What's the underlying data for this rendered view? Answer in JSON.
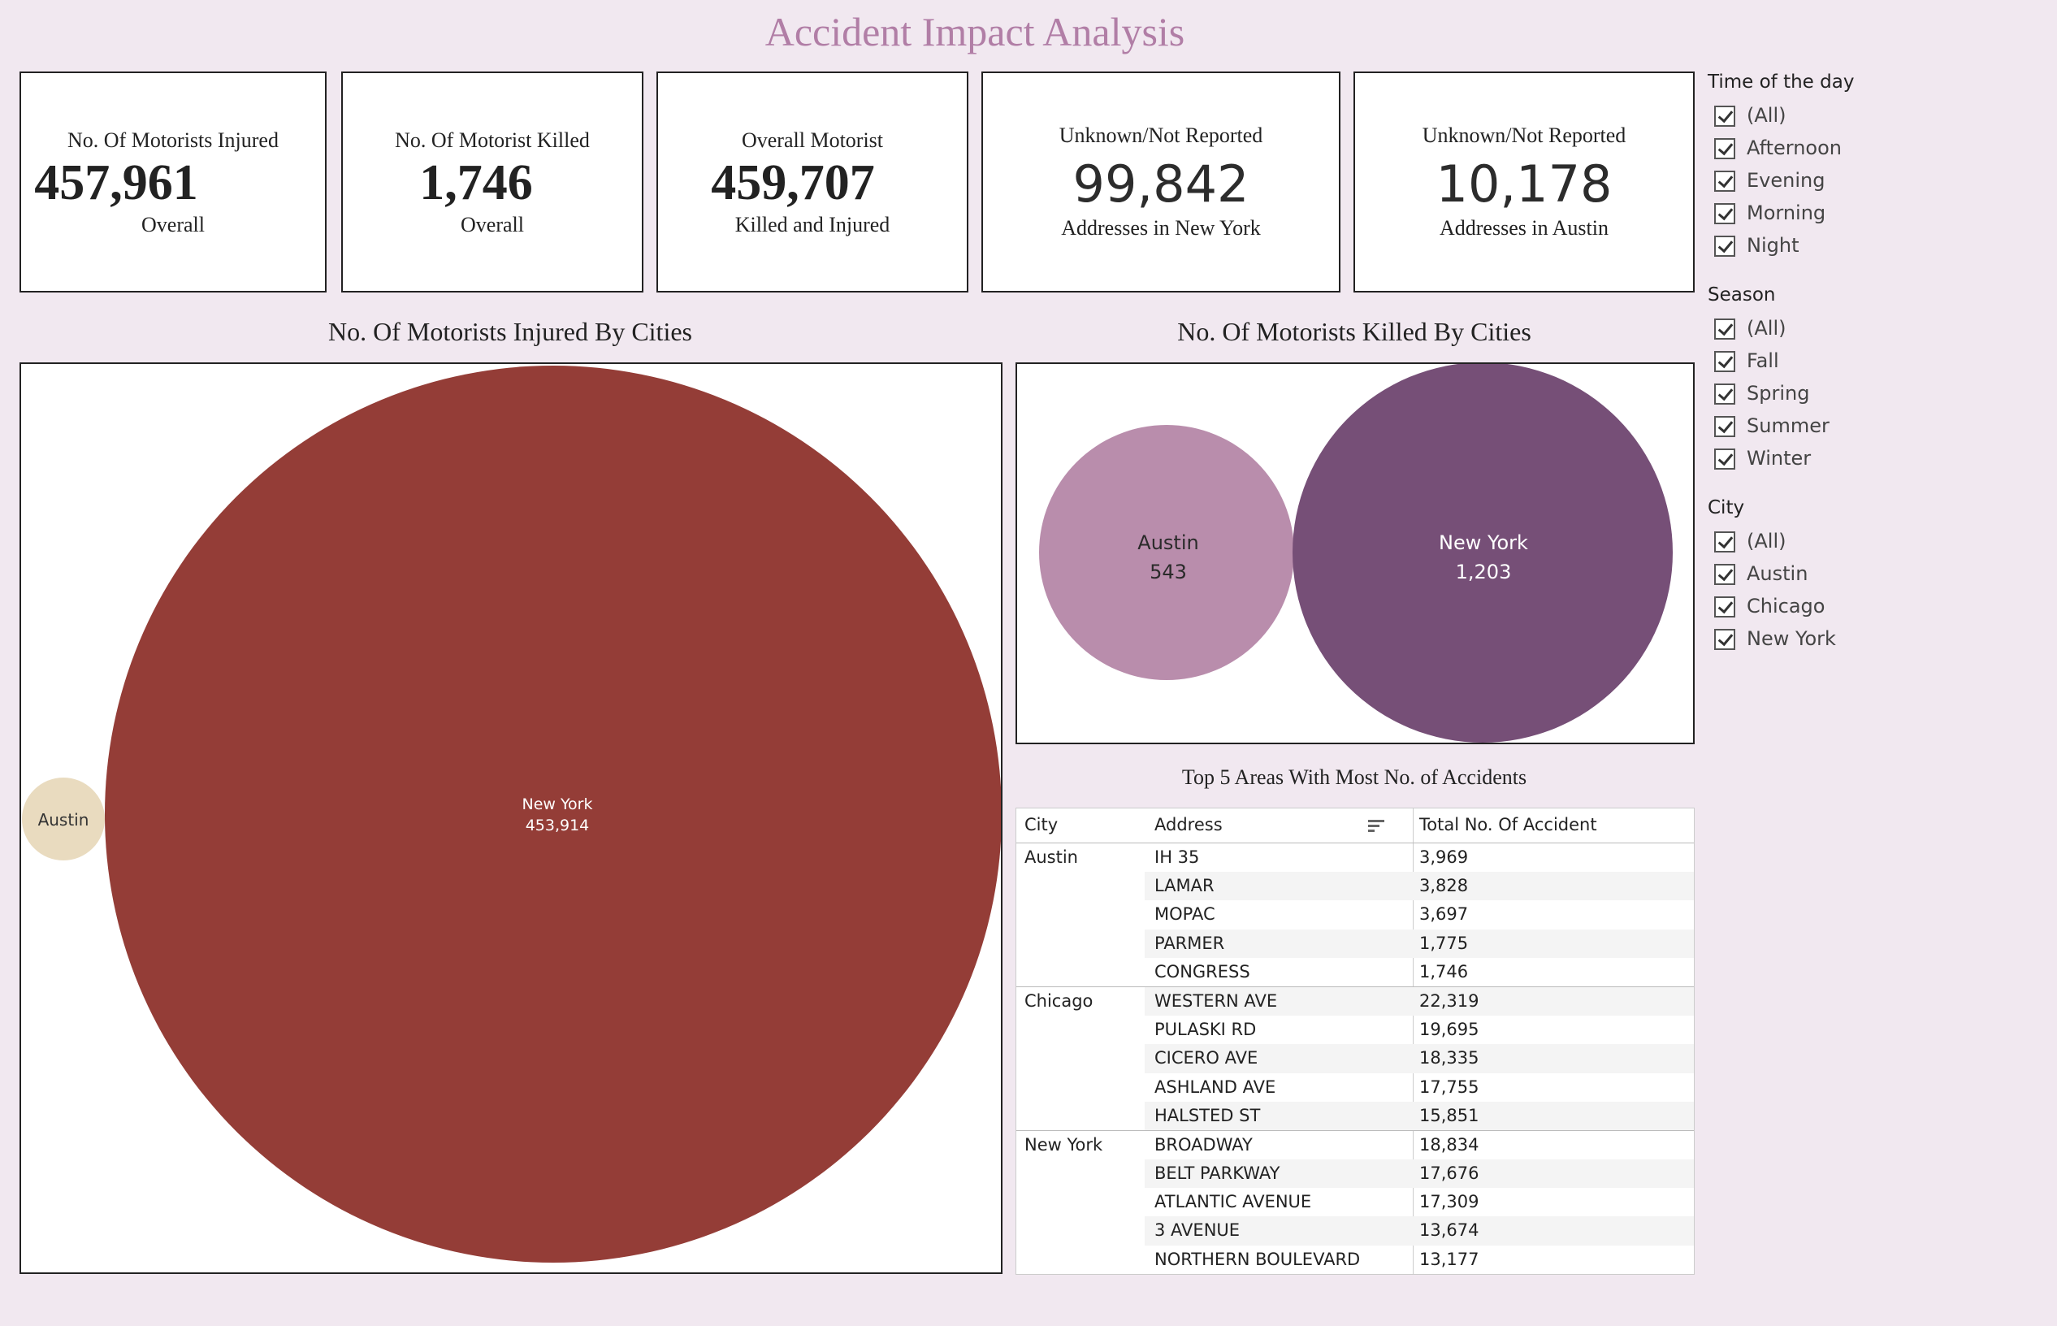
{
  "title": "Accident Impact Analysis",
  "kpis": [
    {
      "line1": "No. Of Motorists Injured",
      "value": "457,961",
      "line3": "Overall"
    },
    {
      "line1": "No. Of Motorist Killed",
      "value": "1,746",
      "line3": "Overall"
    },
    {
      "line1": "Overall Motorist",
      "value": "459,707",
      "line3": "Killed and Injured"
    },
    {
      "line1": "Unknown/Not Reported",
      "value": "99,842",
      "line3": "Addresses in New York"
    },
    {
      "line1": "Unknown/Not Reported",
      "value": "10,178",
      "line3": "Addresses in Austin"
    }
  ],
  "injured_chart": {
    "title": "No. Of Motorists Injured By Cities",
    "bubbles": [
      {
        "city": "Austin",
        "value": "",
        "color": "#e9dbbf"
      },
      {
        "city": "New York",
        "value": "453,914",
        "color": "#943d37"
      }
    ]
  },
  "killed_chart": {
    "title": "No. Of Motorists Killed By Cities",
    "bubbles": [
      {
        "city": "Austin",
        "value": "543",
        "color": "#b98dac"
      },
      {
        "city": "New York",
        "value": "1,203",
        "color": "#764f77"
      }
    ]
  },
  "table": {
    "title": "Top 5 Areas With Most No. of Accidents",
    "headers": {
      "city": "City",
      "address": "Address",
      "total": "Total No. Of Accident"
    },
    "groups": [
      {
        "city": "Austin",
        "rows": [
          {
            "address": "IH 35",
            "total": "3,969"
          },
          {
            "address": "LAMAR",
            "total": "3,828"
          },
          {
            "address": "MOPAC",
            "total": "3,697"
          },
          {
            "address": "PARMER",
            "total": "1,775"
          },
          {
            "address": "CONGRESS",
            "total": "1,746"
          }
        ]
      },
      {
        "city": "Chicago",
        "rows": [
          {
            "address": "WESTERN AVE",
            "total": "22,319"
          },
          {
            "address": "PULASKI RD",
            "total": "19,695"
          },
          {
            "address": "CICERO AVE",
            "total": "18,335"
          },
          {
            "address": "ASHLAND AVE",
            "total": "17,755"
          },
          {
            "address": "HALSTED ST",
            "total": "15,851"
          }
        ]
      },
      {
        "city": "New York",
        "rows": [
          {
            "address": "BROADWAY",
            "total": "18,834"
          },
          {
            "address": "BELT PARKWAY",
            "total": "17,676"
          },
          {
            "address": "ATLANTIC AVENUE",
            "total": "17,309"
          },
          {
            "address": "3 AVENUE",
            "total": "13,674"
          },
          {
            "address": "NORTHERN BOULEVARD",
            "total": "13,177"
          }
        ]
      }
    ]
  },
  "filters": [
    {
      "title": "Time of the day",
      "items": [
        "(All)",
        "Afternoon",
        "Evening",
        "Morning",
        "Night"
      ]
    },
    {
      "title": "Season",
      "items": [
        "(All)",
        "Fall",
        "Spring",
        "Summer",
        "Winter"
      ]
    },
    {
      "title": "City",
      "items": [
        "(All)",
        "Austin",
        "Chicago",
        "New York"
      ]
    }
  ]
}
